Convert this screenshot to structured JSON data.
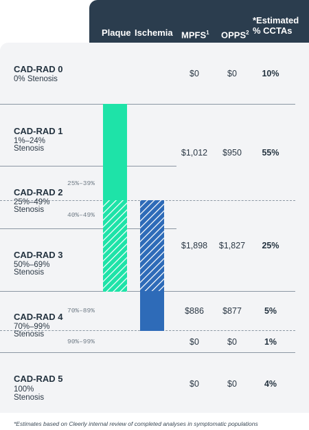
{
  "header": {
    "plaque": "Plaque",
    "ischemia": "Ischemia",
    "mpfs": "MPFS",
    "mpfs_sup": "1",
    "opps": "OPPS",
    "opps_sup": "2",
    "estimated_line1": "*Estimated",
    "estimated_line2": "% CCTAs"
  },
  "rows": [
    {
      "grade": "CAD-RAD 0",
      "desc1": "0% Stenosis",
      "desc2": "",
      "mpfs": "$0",
      "opps": "$0",
      "pct": "10%"
    },
    {
      "grade": "CAD-RAD 1",
      "desc1": "1%–24%",
      "desc2": "Stenosis",
      "mpfs": "$1,012",
      "opps": "$950",
      "pct": "55%"
    },
    {
      "grade": "CAD-RAD 2",
      "desc1": "25%–49%",
      "desc2": "Stenosis"
    },
    {
      "grade": "CAD-RAD 3",
      "desc1": "50%–69%",
      "desc2": "Stenosis",
      "mpfs": "$1,898",
      "opps": "$1,827",
      "pct": "25%"
    },
    {
      "grade": "CAD-RAD 4",
      "desc1": "70%–99%",
      "desc2": "Stenosis",
      "mpfs_a": "$886",
      "opps_a": "$877",
      "pct_a": "5%",
      "mpfs_b": "$0",
      "opps_b": "$0",
      "pct_b": "1%"
    },
    {
      "grade": "CAD-RAD 5",
      "desc1": "100%",
      "desc2": "Stenosis",
      "mpfs": "$0",
      "opps": "$0",
      "pct": "4%"
    }
  ],
  "ranges": {
    "r25_39": "25%–39%",
    "r40_49": "40%–49%",
    "r70_89": "70%–89%",
    "r90_99": "90%–99%"
  },
  "colors": {
    "header_bg": "#2b3d4e",
    "plaque": "#1ee3a8",
    "ischemia": "#2e6bb8",
    "panel_bg": "#f3f4f6"
  },
  "footnote": "*Estimates based on Cleerly internal review of completed analyses in symptomatic populations"
}
